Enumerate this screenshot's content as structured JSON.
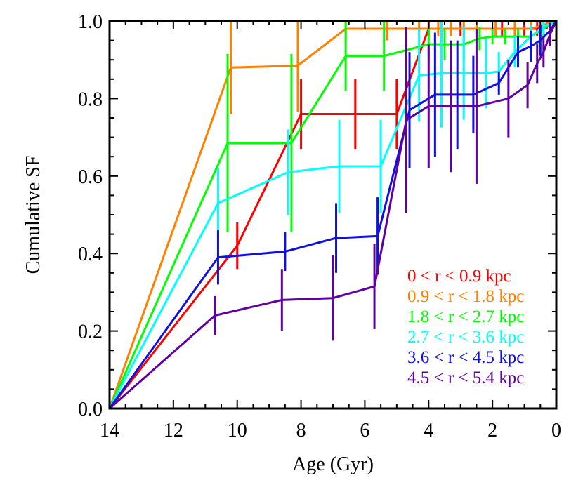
{
  "chart_data": {
    "type": "line",
    "title": "",
    "xlabel": "Age (Gyr)",
    "ylabel": "Cumulative SF",
    "xlim": [
      14,
      0
    ],
    "ylim": [
      0.0,
      1.0
    ],
    "x_ticks": [
      "14",
      "12",
      "10",
      "8",
      "6",
      "4",
      "2",
      "0"
    ],
    "y_ticks": [
      "0.0",
      "0.2",
      "0.4",
      "0.6",
      "0.8",
      "1.0"
    ],
    "grid": false,
    "legend_position": "bottom-right",
    "series": [
      {
        "name": "0 < r < 0.9 kpc",
        "color": "#ff0000",
        "x": [
          14.0,
          10.0,
          8.0,
          6.3,
          5.0,
          4.0,
          3.6,
          3.0,
          2.5,
          1.7,
          1.0,
          0.6,
          0.3,
          0.1,
          0.0
        ],
        "y": [
          0.0,
          0.42,
          0.76,
          0.76,
          0.76,
          0.98,
          0.98,
          0.98,
          0.98,
          0.98,
          0.98,
          0.98,
          0.99,
          0.995,
          1.0
        ],
        "err": [
          0,
          0.06,
          0.09,
          0.09,
          0.09,
          0.02,
          0.02,
          0.02,
          0.02,
          0.02,
          0.02,
          0.02,
          0.01,
          0.005,
          0
        ]
      },
      {
        "name": "0.9 < r < 1.8 kpc",
        "color": "#ff8000",
        "x": [
          14.0,
          10.2,
          8.1,
          6.6,
          5.3,
          4.3,
          3.7,
          3.3,
          2.9,
          2.5,
          1.9,
          1.3,
          0.8,
          0.4,
          0.0
        ],
        "y": [
          0.0,
          0.88,
          0.885,
          0.98,
          0.98,
          0.98,
          0.98,
          0.98,
          0.98,
          0.98,
          0.98,
          0.98,
          0.98,
          0.99,
          1.0
        ],
        "err": [
          0,
          0.12,
          0.12,
          0.03,
          0.03,
          0.02,
          0.02,
          0.02,
          0.02,
          0.02,
          0.02,
          0.02,
          0.02,
          0.01,
          0
        ]
      },
      {
        "name": "1.8 < r < 2.7 kpc",
        "color": "#00ff00",
        "x": [
          14.0,
          10.3,
          8.3,
          6.6,
          5.4,
          4.0,
          3.5,
          2.9,
          2.4,
          2.0,
          1.6,
          1.2,
          0.8,
          0.4,
          0.0
        ],
        "y": [
          0.0,
          0.685,
          0.685,
          0.91,
          0.91,
          0.94,
          0.94,
          0.94,
          0.955,
          0.96,
          0.96,
          0.96,
          0.96,
          0.98,
          1.0
        ],
        "err": [
          0,
          0.23,
          0.23,
          0.09,
          0.09,
          0.04,
          0.04,
          0.04,
          0.03,
          0.02,
          0.02,
          0.02,
          0.02,
          0.02,
          0
        ]
      },
      {
        "name": "2.7 < r < 3.6 kpc",
        "color": "#00ffff",
        "x": [
          14.0,
          10.6,
          8.4,
          6.8,
          5.5,
          4.3,
          3.6,
          2.9,
          2.2,
          1.8,
          1.3,
          0.8,
          0.4,
          0.0
        ],
        "y": [
          0.0,
          0.53,
          0.61,
          0.625,
          0.625,
          0.86,
          0.865,
          0.865,
          0.865,
          0.87,
          0.92,
          0.96,
          0.985,
          1.0
        ],
        "err": [
          0,
          0.09,
          0.11,
          0.12,
          0.12,
          0.12,
          0.14,
          0.12,
          0.09,
          0.05,
          0.04,
          0.03,
          0.02,
          0
        ]
      },
      {
        "name": "3.6 < r < 4.5 kpc",
        "color": "#1010e0",
        "x": [
          14.0,
          10.6,
          8.5,
          6.9,
          5.6,
          4.6,
          3.8,
          3.1,
          2.6,
          1.8,
          1.2,
          0.8,
          0.5,
          0.2,
          0.0
        ],
        "y": [
          0.0,
          0.39,
          0.405,
          0.44,
          0.445,
          0.77,
          0.81,
          0.81,
          0.81,
          0.84,
          0.92,
          0.935,
          0.95,
          0.975,
          1.0
        ],
        "err": [
          0,
          0.07,
          0.05,
          0.09,
          0.1,
          0.15,
          0.16,
          0.14,
          0.1,
          0.03,
          0.04,
          0.04,
          0.04,
          0.02,
          0
        ]
      },
      {
        "name": "4.5 < r < 5.4 kpc",
        "color": "#6000a0",
        "x": [
          14.0,
          10.7,
          8.6,
          7.0,
          5.7,
          4.7,
          4.0,
          3.3,
          2.5,
          1.5,
          0.9,
          0.6,
          0.4,
          0.2,
          0.0
        ],
        "y": [
          0.0,
          0.24,
          0.28,
          0.285,
          0.315,
          0.745,
          0.78,
          0.78,
          0.78,
          0.8,
          0.835,
          0.89,
          0.92,
          0.965,
          1.0
        ],
        "err": [
          0,
          0.05,
          0.08,
          0.11,
          0.11,
          0.24,
          0.16,
          0.17,
          0.2,
          0.1,
          0.06,
          0.05,
          0.04,
          0.03,
          0
        ]
      }
    ]
  }
}
